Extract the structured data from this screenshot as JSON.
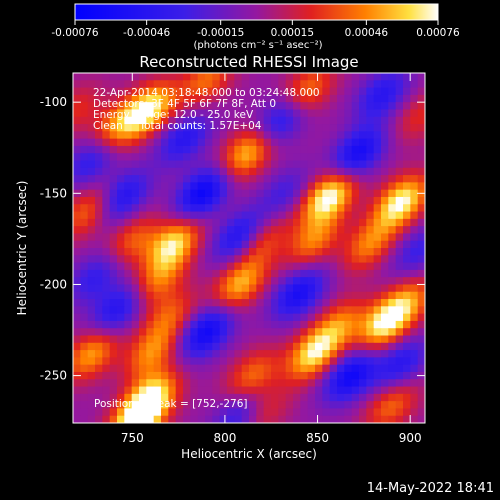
{
  "chart_data": {
    "type": "heatmap",
    "title": "Reconstructed RHESSI Image",
    "xlabel": "Heliocentric X (arcsec)",
    "ylabel": "Heliocentric Y (arcsec)",
    "xlim": [
      718,
      908
    ],
    "ylim": [
      -276,
      -84
    ],
    "x_ticks": [
      750,
      800,
      850,
      900
    ],
    "y_ticks": [
      -100,
      -150,
      -200,
      -250
    ],
    "colorbar": {
      "ticks": [
        "-0.00076",
        "-0.00046",
        "-0.00015",
        "0.00015",
        "0.00046",
        "0.00076"
      ],
      "range": [
        -0.00076,
        0.00076
      ],
      "units": "(photons cm⁻² s⁻¹ asec⁻²)"
    },
    "annotations": [
      "22-Apr-2014 03:18:48.000 to 03:24:48.000",
      "Detectors: 3F 4F 5F 6F 7F 8F, Att 0",
      "Energy Range: 12.0 - 25.0 keV",
      "Clean     Total counts: 1.57E+04"
    ],
    "peak_label": "Position of Peak = [752,-276]",
    "peak_position": [
      752,
      -276
    ],
    "blobs": [
      {
        "x": 759,
        "y": -104,
        "v": 0.9
      },
      {
        "x": 742,
        "y": -114,
        "v": 0.6
      },
      {
        "x": 790,
        "y": -88,
        "v": 0.5
      },
      {
        "x": 812,
        "y": -128,
        "v": 0.75
      },
      {
        "x": 844,
        "y": -94,
        "v": 0.55
      },
      {
        "x": 856,
        "y": -152,
        "v": 1.0
      },
      {
        "x": 848,
        "y": -176,
        "v": 0.55
      },
      {
        "x": 895,
        "y": -155,
        "v": 0.95
      },
      {
        "x": 878,
        "y": -178,
        "v": 0.55
      },
      {
        "x": 772,
        "y": -178,
        "v": 0.85
      },
      {
        "x": 764,
        "y": -198,
        "v": 0.5
      },
      {
        "x": 750,
        "y": -176,
        "v": 0.45
      },
      {
        "x": 726,
        "y": -160,
        "v": 0.5
      },
      {
        "x": 808,
        "y": -200,
        "v": 0.7
      },
      {
        "x": 820,
        "y": -176,
        "v": 0.45
      },
      {
        "x": 728,
        "y": -238,
        "v": 0.65
      },
      {
        "x": 760,
        "y": -238,
        "v": 0.55
      },
      {
        "x": 760,
        "y": -262,
        "v": 0.85
      },
      {
        "x": 752,
        "y": -276,
        "v": 1.0
      },
      {
        "x": 770,
        "y": -218,
        "v": 0.45
      },
      {
        "x": 815,
        "y": -250,
        "v": 0.5
      },
      {
        "x": 848,
        "y": -238,
        "v": 0.85
      },
      {
        "x": 862,
        "y": -222,
        "v": 0.5
      },
      {
        "x": 886,
        "y": -222,
        "v": 0.85
      },
      {
        "x": 898,
        "y": -210,
        "v": 0.55
      },
      {
        "x": 890,
        "y": -266,
        "v": 0.5
      },
      {
        "x": 720,
        "y": -104,
        "v": 0.3
      },
      {
        "x": 820,
        "y": -270,
        "v": 0.35
      },
      {
        "x": 905,
        "y": -108,
        "v": 0.3
      },
      {
        "x": 788,
        "y": -150,
        "v": -0.85
      },
      {
        "x": 778,
        "y": -120,
        "v": -0.55
      },
      {
        "x": 808,
        "y": -174,
        "v": -0.65
      },
      {
        "x": 745,
        "y": -152,
        "v": -0.6
      },
      {
        "x": 728,
        "y": -132,
        "v": -0.5
      },
      {
        "x": 872,
        "y": -128,
        "v": -0.75
      },
      {
        "x": 885,
        "y": -96,
        "v": -0.55
      },
      {
        "x": 830,
        "y": -110,
        "v": -0.6
      },
      {
        "x": 840,
        "y": -205,
        "v": -0.7
      },
      {
        "x": 790,
        "y": -226,
        "v": -0.8
      },
      {
        "x": 742,
        "y": -214,
        "v": -0.6
      },
      {
        "x": 868,
        "y": -250,
        "v": -0.8
      },
      {
        "x": 895,
        "y": -244,
        "v": -0.55
      },
      {
        "x": 808,
        "y": -272,
        "v": -0.5
      },
      {
        "x": 730,
        "y": -196,
        "v": -0.45
      },
      {
        "x": 904,
        "y": -182,
        "v": -0.4
      },
      {
        "x": 832,
        "y": -150,
        "v": -0.35
      }
    ]
  },
  "footer": {
    "date": "14-May-2022 18:41"
  }
}
